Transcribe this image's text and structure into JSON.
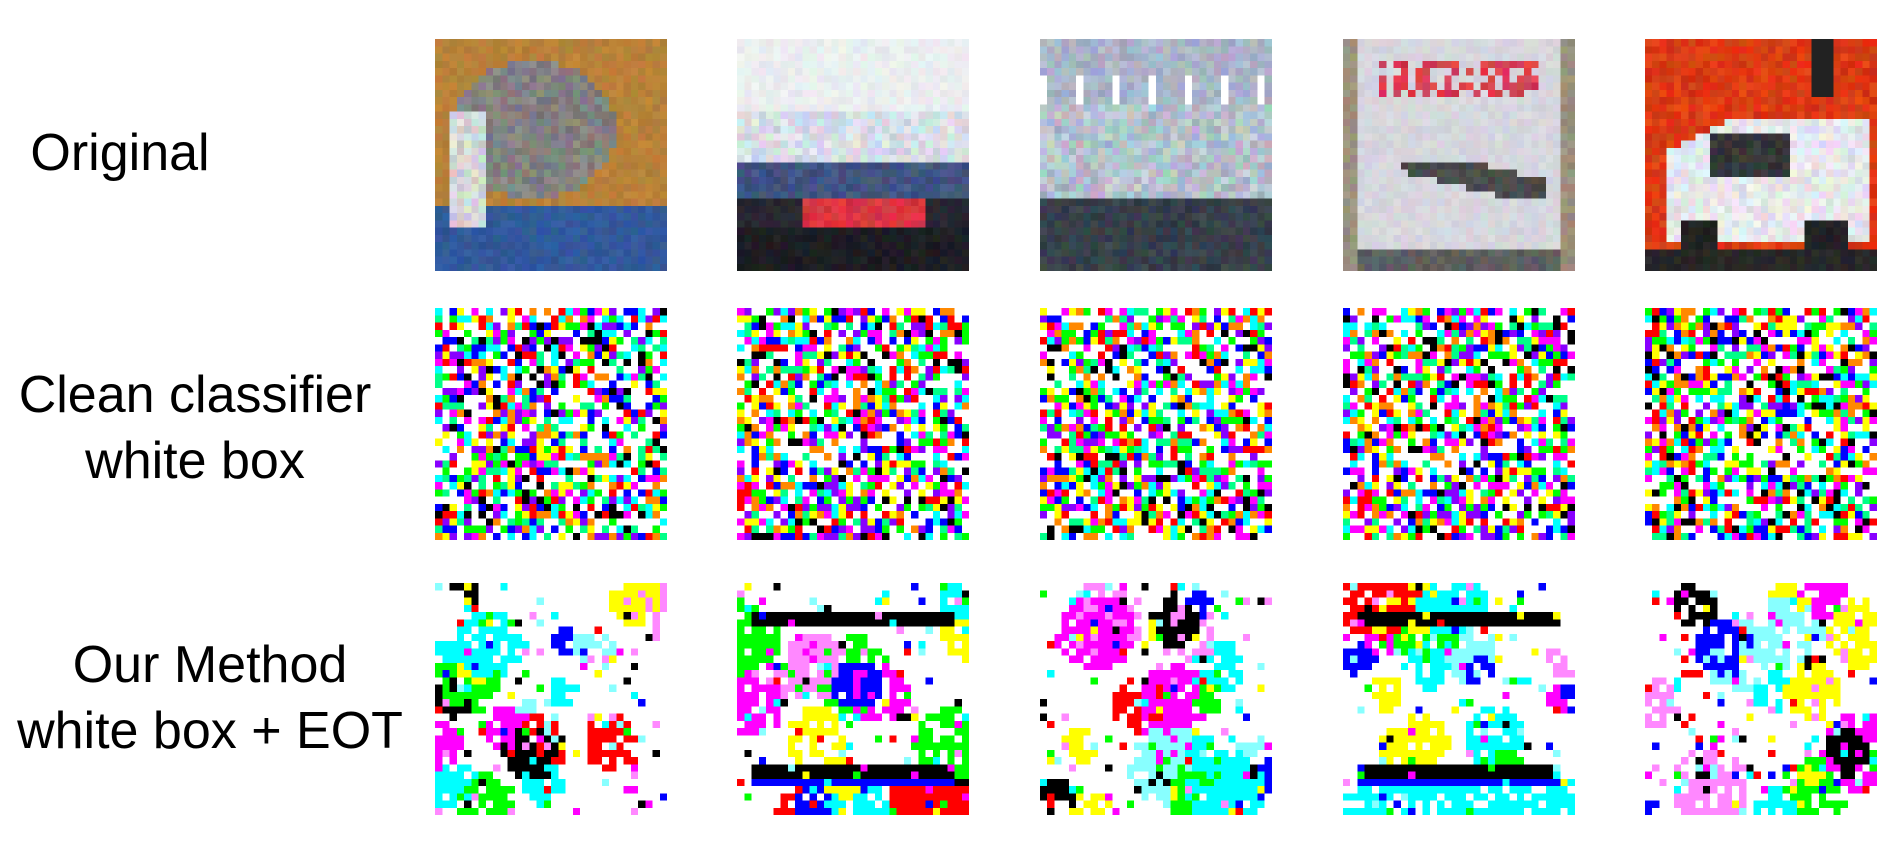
{
  "rows": [
    {
      "label": "Original"
    },
    {
      "label": "Clean classifier\nwhite box"
    },
    {
      "label": "Our Method\nwhite box + EOT"
    }
  ],
  "columns": 5,
  "image_kinds": [
    [
      "cat-photo",
      "ship-photo",
      "boat-photo",
      "airplane-poster-photo",
      "car-photo"
    ],
    [
      "noise",
      "noise",
      "noise",
      "noise",
      "noise"
    ],
    [
      "cat-perturbation",
      "ship-perturbation",
      "boat-perturbation",
      "airplane-perturbation",
      "car-perturbation"
    ]
  ]
}
